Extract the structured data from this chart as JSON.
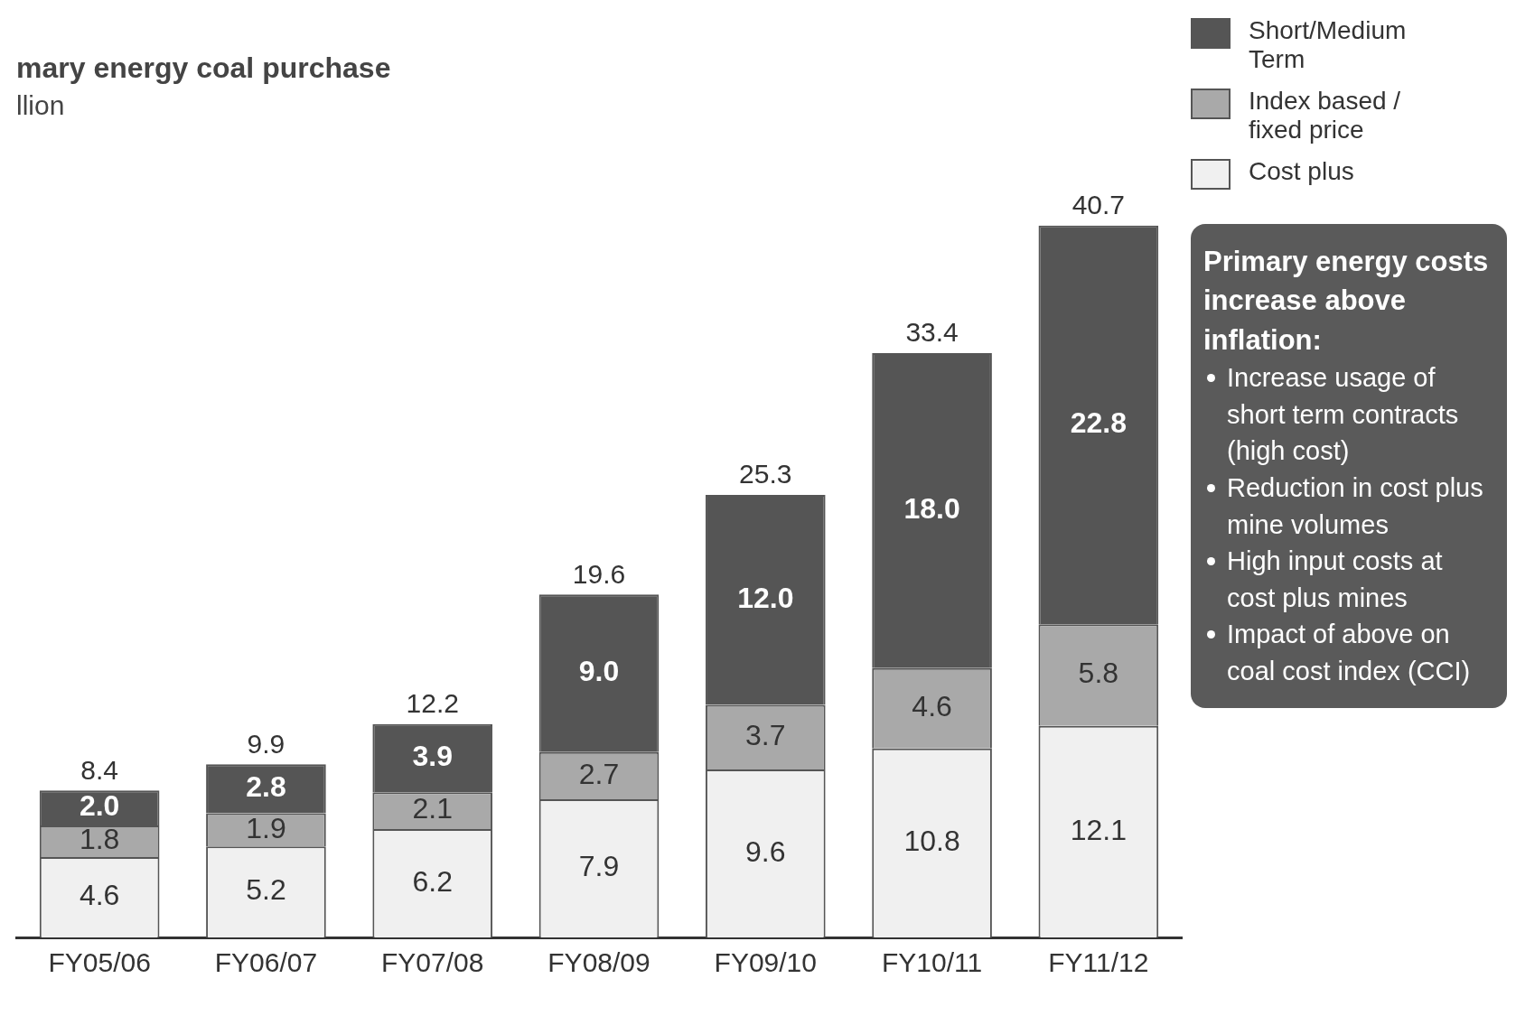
{
  "chart_data": {
    "type": "bar",
    "title": "mary energy coal purchase",
    "subtitle": "llion",
    "categories": [
      "FY05/06",
      "FY06/07",
      "FY07/08",
      "FY08/09",
      "FY09/10",
      "FY10/11",
      "FY11/12"
    ],
    "stacked": true,
    "series": [
      {
        "name": "Cost plus",
        "color": "#f0f0f0",
        "values": [
          4.6,
          5.2,
          6.2,
          7.9,
          9.6,
          10.8,
          12.1
        ],
        "value_labels": [
          "4.6",
          "5.2",
          "6.2",
          "7.9",
          "9.6",
          "10.8",
          "12.1"
        ]
      },
      {
        "name": "Index based / fixed price",
        "color": "#a9a9a9",
        "values": [
          1.8,
          1.9,
          2.1,
          2.7,
          3.7,
          4.6,
          5.8
        ],
        "value_labels": [
          "1.8",
          "1.9",
          "2.1",
          "2.7",
          "3.7",
          "4.6",
          "5.8"
        ]
      },
      {
        "name": "Short/Medium Term",
        "color": "#555555",
        "values": [
          2.0,
          2.8,
          3.9,
          9.0,
          12.0,
          18.0,
          22.8
        ],
        "value_labels": [
          "2.0",
          "2.8",
          "3.9",
          "9.0",
          "12.0",
          "18.0",
          "22.8"
        ]
      }
    ],
    "totals": [
      "8.4",
      "9.9",
      "12.2",
      "19.6",
      "25.3",
      "33.4",
      "40.7"
    ],
    "legend": "top right",
    "grid": false,
    "annotations": [
      "Primary energy costs increase above inflation:",
      "Increase usage of short term contracts (high cost)",
      "Reduction in cost plus mine volumes",
      "High input costs at cost plus mines",
      "Impact of above on coal cost index (CCI)"
    ]
  }
}
